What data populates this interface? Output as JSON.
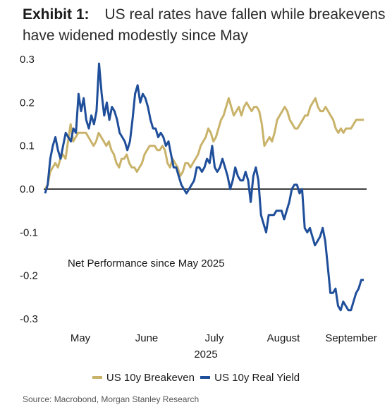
{
  "header": {
    "exhibit": "Exhibit 1:",
    "title": "US real rates have fallen while breakevens have widened modestly since May"
  },
  "source": "Source: Macrobond, Morgan Stanley Research",
  "chart_data": {
    "type": "line",
    "title": "US real rates have fallen while breakevens have widened modestly since May",
    "annotation": "Net Performance since May 2025",
    "xlabel": "2025",
    "ylabel": "",
    "ylim": [
      -0.3,
      0.3
    ],
    "yticks": [
      "0.3",
      "0.2",
      "0.1",
      "0.0",
      "-0.1",
      "-0.2",
      "-0.3"
    ],
    "xticks": [
      "May",
      "June",
      "July",
      "August",
      "September"
    ],
    "legend_position": "bottom",
    "grid": false,
    "zero_line": true,
    "series": [
      {
        "name": "US 10y Breakeven",
        "color": "#C9B36A",
        "values": [
          0.0,
          0.01,
          0.04,
          0.05,
          0.06,
          0.05,
          0.07,
          0.08,
          0.07,
          0.11,
          0.15,
          0.11,
          0.12,
          0.13,
          0.13,
          0.13,
          0.13,
          0.12,
          0.11,
          0.1,
          0.11,
          0.13,
          0.12,
          0.11,
          0.1,
          0.11,
          0.09,
          0.08,
          0.06,
          0.05,
          0.07,
          0.07,
          0.08,
          0.06,
          0.05,
          0.05,
          0.04,
          0.05,
          0.06,
          0.08,
          0.09,
          0.1,
          0.1,
          0.1,
          0.09,
          0.09,
          0.1,
          0.09,
          0.06,
          0.05,
          0.07,
          0.06,
          0.05,
          0.03,
          0.04,
          0.06,
          0.06,
          0.05,
          0.06,
          0.07,
          0.08,
          0.1,
          0.11,
          0.12,
          0.14,
          0.13,
          0.11,
          0.12,
          0.14,
          0.16,
          0.17,
          0.19,
          0.21,
          0.19,
          0.17,
          0.18,
          0.19,
          0.17,
          0.19,
          0.2,
          0.19,
          0.18,
          0.19,
          0.19,
          0.18,
          0.15,
          0.1,
          0.11,
          0.12,
          0.11,
          0.13,
          0.16,
          0.17,
          0.18,
          0.19,
          0.18,
          0.16,
          0.15,
          0.14,
          0.14,
          0.15,
          0.16,
          0.17,
          0.17,
          0.19,
          0.2,
          0.21,
          0.19,
          0.18,
          0.18,
          0.19,
          0.18,
          0.17,
          0.16,
          0.14,
          0.13,
          0.14,
          0.13,
          0.14,
          0.14,
          0.14,
          0.15,
          0.16,
          0.16,
          0.16,
          0.16
        ]
      },
      {
        "name": "US 10y Real Yield",
        "color": "#1F4E9A",
        "values": [
          -0.01,
          0.01,
          0.07,
          0.1,
          0.12,
          0.09,
          0.07,
          0.1,
          0.13,
          0.12,
          0.11,
          0.14,
          0.13,
          0.22,
          0.18,
          0.21,
          0.16,
          0.14,
          0.17,
          0.15,
          0.18,
          0.29,
          0.22,
          0.17,
          0.2,
          0.16,
          0.19,
          0.18,
          0.16,
          0.13,
          0.12,
          0.11,
          0.09,
          0.11,
          0.16,
          0.22,
          0.24,
          0.2,
          0.22,
          0.21,
          0.19,
          0.16,
          0.14,
          0.14,
          0.12,
          0.13,
          0.12,
          0.1,
          0.11,
          0.08,
          0.05,
          0.05,
          0.03,
          0.01,
          0.0,
          -0.01,
          0.0,
          0.01,
          0.02,
          0.05,
          0.05,
          0.04,
          0.05,
          0.07,
          0.06,
          0.1,
          0.05,
          0.04,
          0.05,
          0.07,
          0.05,
          0.03,
          0.0,
          0.02,
          0.05,
          0.03,
          0.02,
          0.02,
          0.04,
          0.02,
          -0.03,
          0.03,
          0.05,
          0.02,
          -0.06,
          -0.08,
          -0.1,
          -0.06,
          -0.06,
          -0.06,
          -0.05,
          -0.05,
          -0.05,
          -0.07,
          -0.05,
          -0.03,
          0.0,
          0.01,
          0.01,
          -0.01,
          0.0,
          -0.09,
          -0.1,
          -0.09,
          -0.11,
          -0.13,
          -0.12,
          -0.11,
          -0.09,
          -0.12,
          -0.18,
          -0.24,
          -0.24,
          -0.23,
          -0.27,
          -0.28,
          -0.26,
          -0.27,
          -0.28,
          -0.28,
          -0.26,
          -0.24,
          -0.23,
          -0.21,
          -0.21
        ]
      }
    ]
  }
}
